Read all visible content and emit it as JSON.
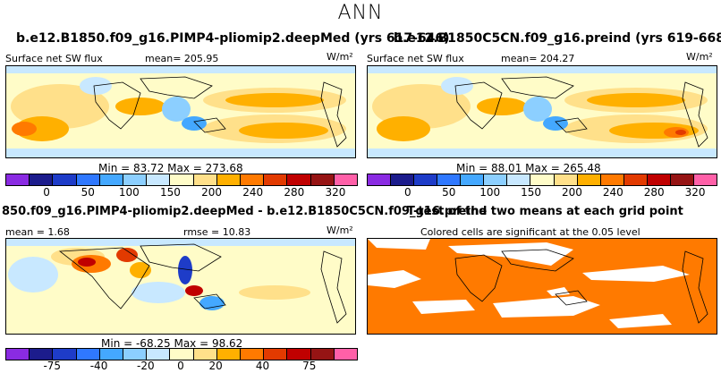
{
  "title": "ANN",
  "panels": {
    "a": {
      "title": "b.e12.B1850.f09_g16.PIMP4-pliomip2.deepMed (yrs 617-646)",
      "variable": "Surface net SW flux",
      "mean": "mean= 205.95",
      "units": "W/m²",
      "minmax": "Min =  83.72  Max = 273.68"
    },
    "b": {
      "title": "b.e12.B1850C5CN.f09_g16.preind (yrs 619-668)",
      "variable": "Surface net SW flux",
      "mean": "mean= 204.27",
      "units": "W/m²",
      "minmax": "Min =  88.01  Max = 265.48"
    },
    "c": {
      "title": "850.f09_g16.PIMP4-pliomip2.deepMed - b.e12.B1850C5CN.f09_g16.preind",
      "mean": "mean =   1.68",
      "rmse": "rmse =  10.83",
      "units": "W/m²",
      "minmax": "Min = -68.25  Max =  98.62"
    },
    "d": {
      "title": "T-test of the two means at each grid point",
      "subtitle": "Colored cells are significant at the 0.05 level"
    }
  },
  "colorbars": {
    "abs_ticks": [
      "0",
      "50",
      "100",
      "150",
      "200",
      "240",
      "280",
      "320"
    ],
    "diff_ticks": [
      "-75",
      "-40",
      "-20",
      "0",
      "20",
      "40",
      "75"
    ],
    "abs_colors": [
      "#8a2be2",
      "#1c1c8c",
      "#1e3cc8",
      "#2f78ff",
      "#44a8ff",
      "#8ccfff",
      "#c8e8ff",
      "#fffcc8",
      "#ffe08a",
      "#ffb000",
      "#ff7a00",
      "#e23a00",
      "#c00000",
      "#961414",
      "#ff60a8"
    ],
    "diff_colors": [
      "#8a2be2",
      "#1c1c8c",
      "#1e3cc8",
      "#2f78ff",
      "#44a8ff",
      "#8ccfff",
      "#c8e8ff",
      "#fffcc8",
      "#ffe08a",
      "#ffb000",
      "#ff7a00",
      "#e23a00",
      "#c00000",
      "#961414",
      "#ff60a8"
    ]
  }
}
